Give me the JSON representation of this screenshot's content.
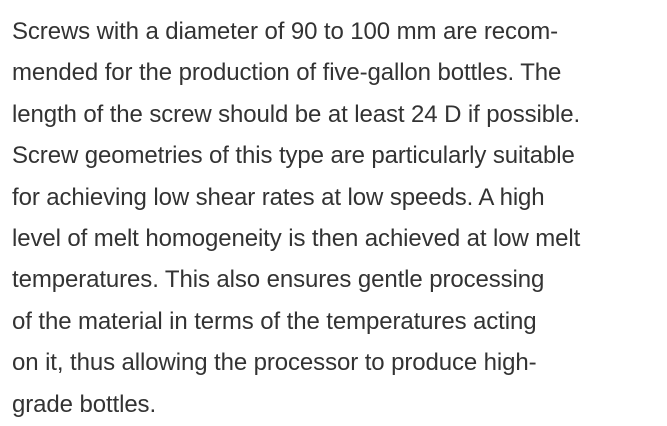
{
  "paragraph": {
    "lines": [
      "Screws with a diameter of 90 to 100 mm are recom-",
      "mended for the production of five-gallon bottles. The",
      "length of the screw should be at least 24 D if possible.",
      "Screw geometries of this type are particularly suitable",
      "for achieving low shear rates at low speeds. A high",
      "level of melt homogeneity is then achieved at low melt",
      "temperatures. This also ensures gentle processing",
      "of the material in terms of the temperatures acting",
      "on it, thus allowing the processor to produce high-",
      "grade bottles."
    ]
  }
}
